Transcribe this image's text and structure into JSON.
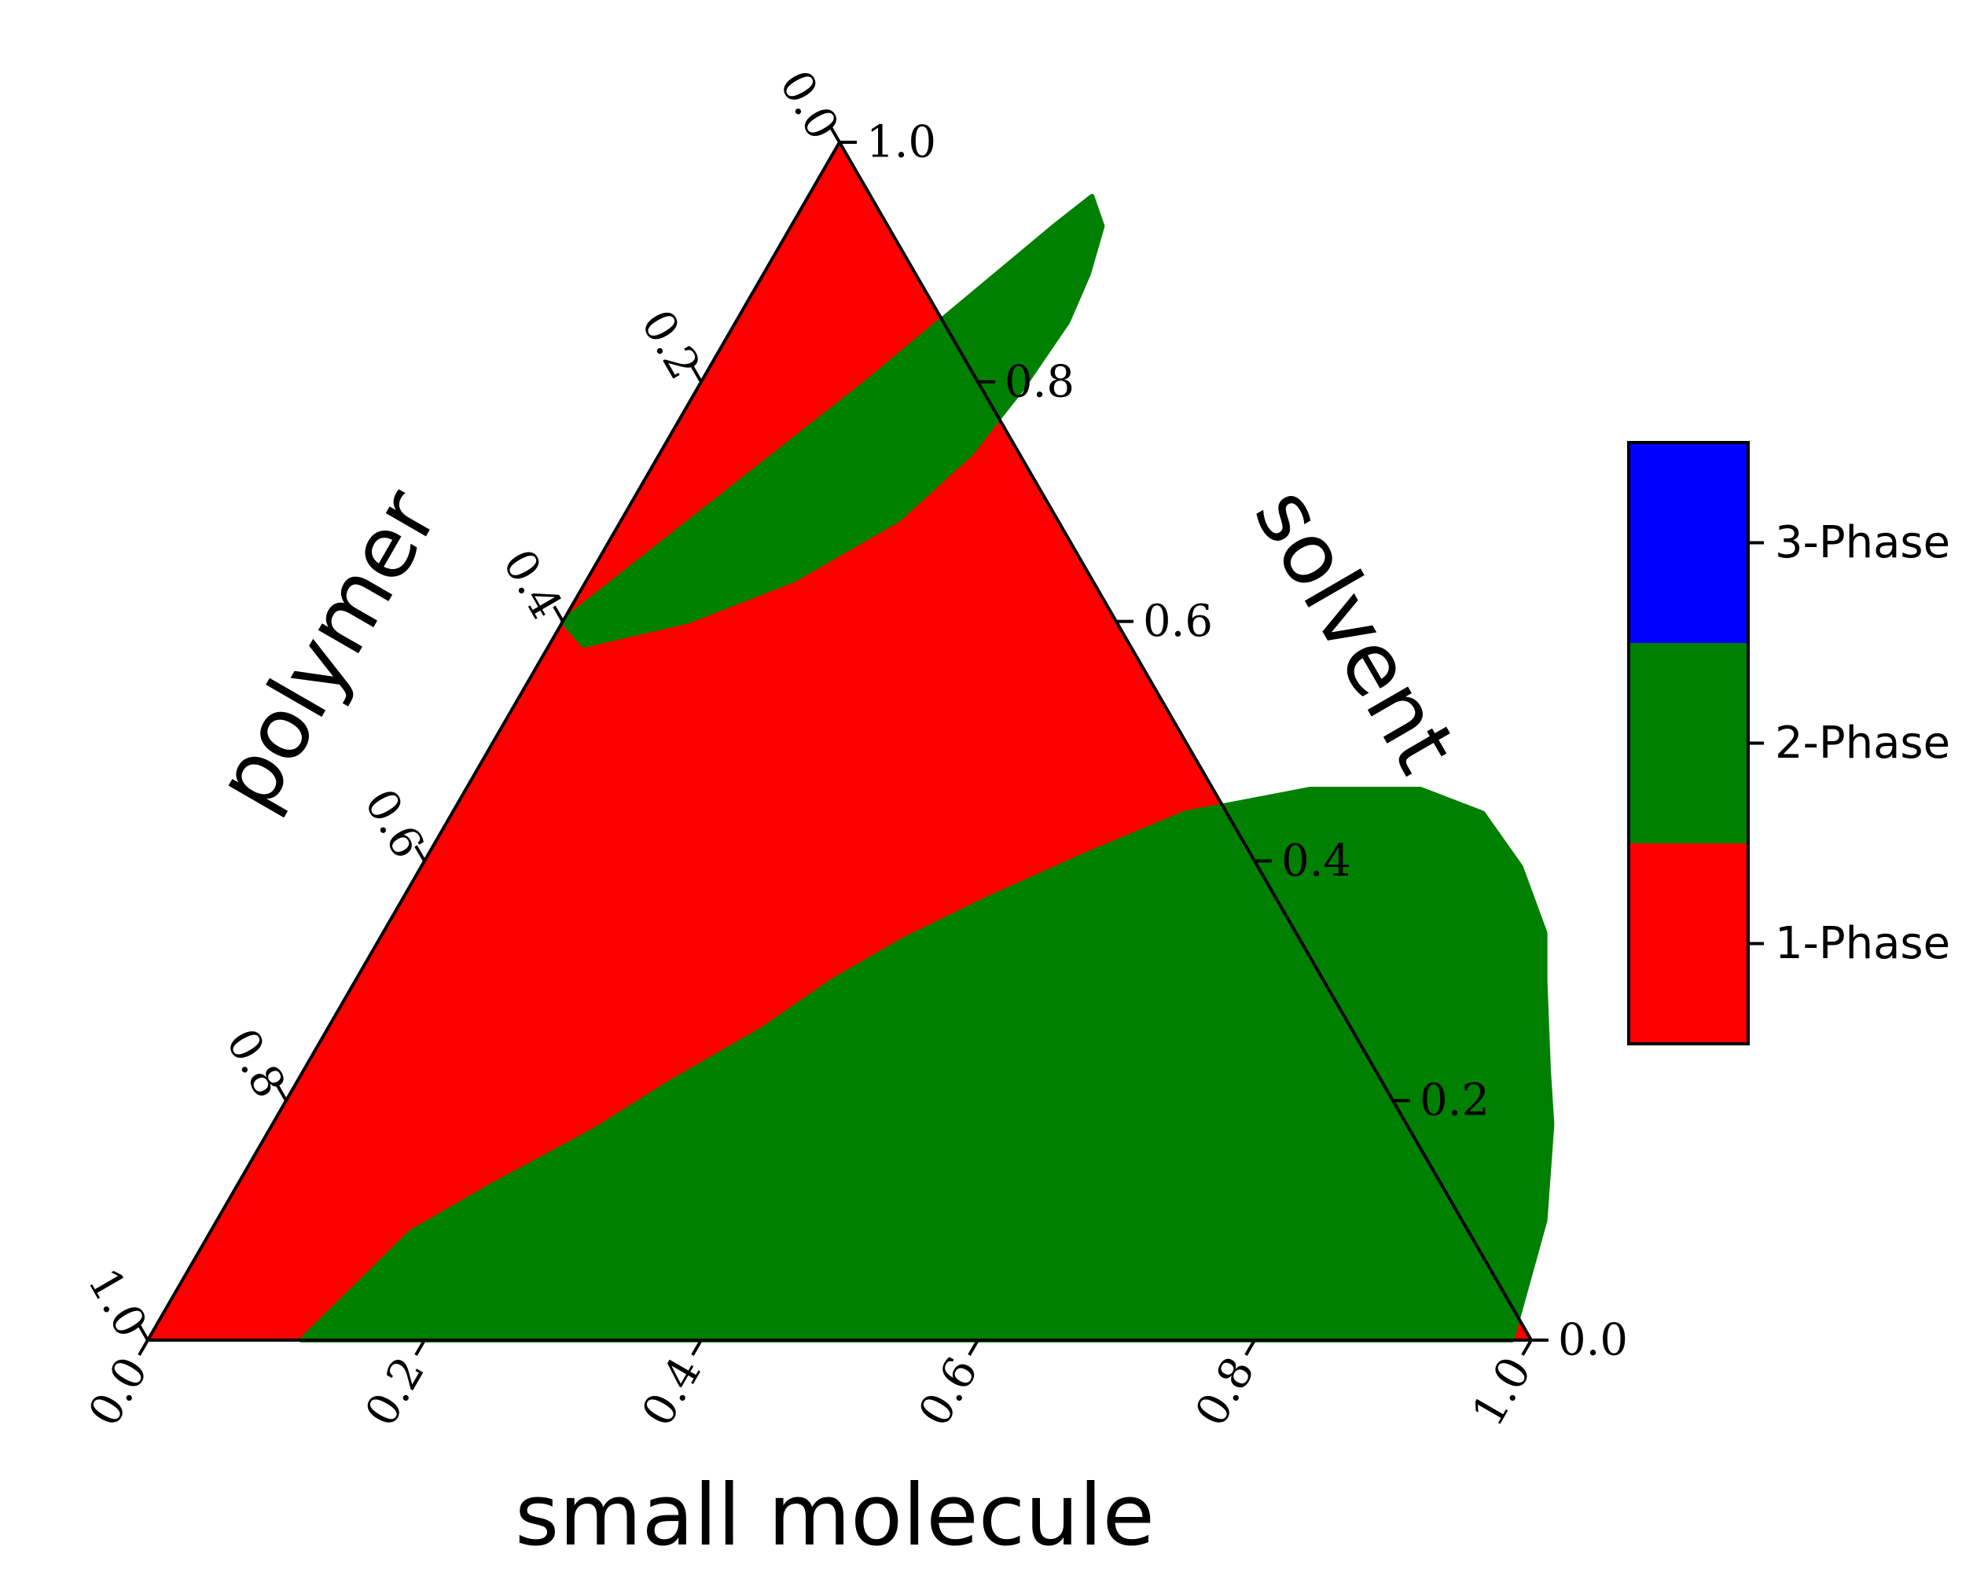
{
  "chart_data": {
    "type": "ternary-phase-diagram",
    "axes": {
      "bottom": {
        "label": "small molecule",
        "ticks": [
          "0.0",
          "0.2",
          "0.4",
          "0.6",
          "0.8",
          "1.0"
        ],
        "range": [
          0,
          1
        ]
      },
      "left": {
        "label": "polymer",
        "ticks": [
          "0.0",
          "0.2",
          "0.4",
          "0.6",
          "0.8",
          "1.0"
        ],
        "range": [
          0,
          1
        ]
      },
      "right": {
        "label": "solvent",
        "ticks": [
          "0.0",
          "0.2",
          "0.4",
          "0.6",
          "0.8",
          "1.0"
        ],
        "range": [
          0,
          1
        ]
      }
    },
    "phases": [
      {
        "label": "1-Phase",
        "color": "#ff0000"
      },
      {
        "label": "2-Phase",
        "color": "#008000"
      },
      {
        "label": "3-Phase",
        "color": "#0000ff"
      }
    ],
    "regions": [
      {
        "phase": "2-Phase",
        "description_points": "boundary as (small molecule, solvent) fractions",
        "points": [
          [
            0.111,
            0.0
          ],
          [
            0.13,
            0.05
          ],
          [
            0.145,
            0.09
          ],
          [
            0.185,
            0.13
          ],
          [
            0.235,
            0.175
          ],
          [
            0.27,
            0.215
          ],
          [
            0.315,
            0.26
          ],
          [
            0.345,
            0.3
          ],
          [
            0.38,
            0.335
          ],
          [
            0.425,
            0.37
          ],
          [
            0.475,
            0.405
          ],
          [
            0.53,
            0.44
          ],
          [
            0.61,
            0.46
          ],
          [
            0.69,
            0.46
          ],
          [
            0.745,
            0.44
          ],
          [
            0.795,
            0.395
          ],
          [
            0.84,
            0.34
          ],
          [
            0.86,
            0.3
          ],
          [
            0.9,
            0.225
          ],
          [
            0.925,
            0.18
          ],
          [
            0.96,
            0.1
          ],
          [
            0.986,
            0.0
          ]
        ]
      },
      {
        "phase": "2-Phase",
        "description_points": "boundary as (small molecule, solvent) fractions",
        "points": [
          [
            0.0,
            0.6
          ],
          [
            0.025,
            0.58
          ],
          [
            0.09,
            0.6
          ],
          [
            0.15,
            0.635
          ],
          [
            0.2,
            0.685
          ],
          [
            0.225,
            0.74
          ],
          [
            0.235,
            0.795
          ],
          [
            0.24,
            0.85
          ],
          [
            0.235,
            0.89
          ],
          [
            0.225,
            0.93
          ],
          [
            0.205,
            0.955
          ],
          [
            0.19,
            0.93
          ],
          [
            0.12,
            0.8
          ],
          [
            0.06,
            0.7
          ],
          [
            0.0,
            0.6
          ]
        ]
      }
    ],
    "legend": {
      "position": "right",
      "type": "colorbar"
    },
    "background_phase": "1-Phase"
  }
}
